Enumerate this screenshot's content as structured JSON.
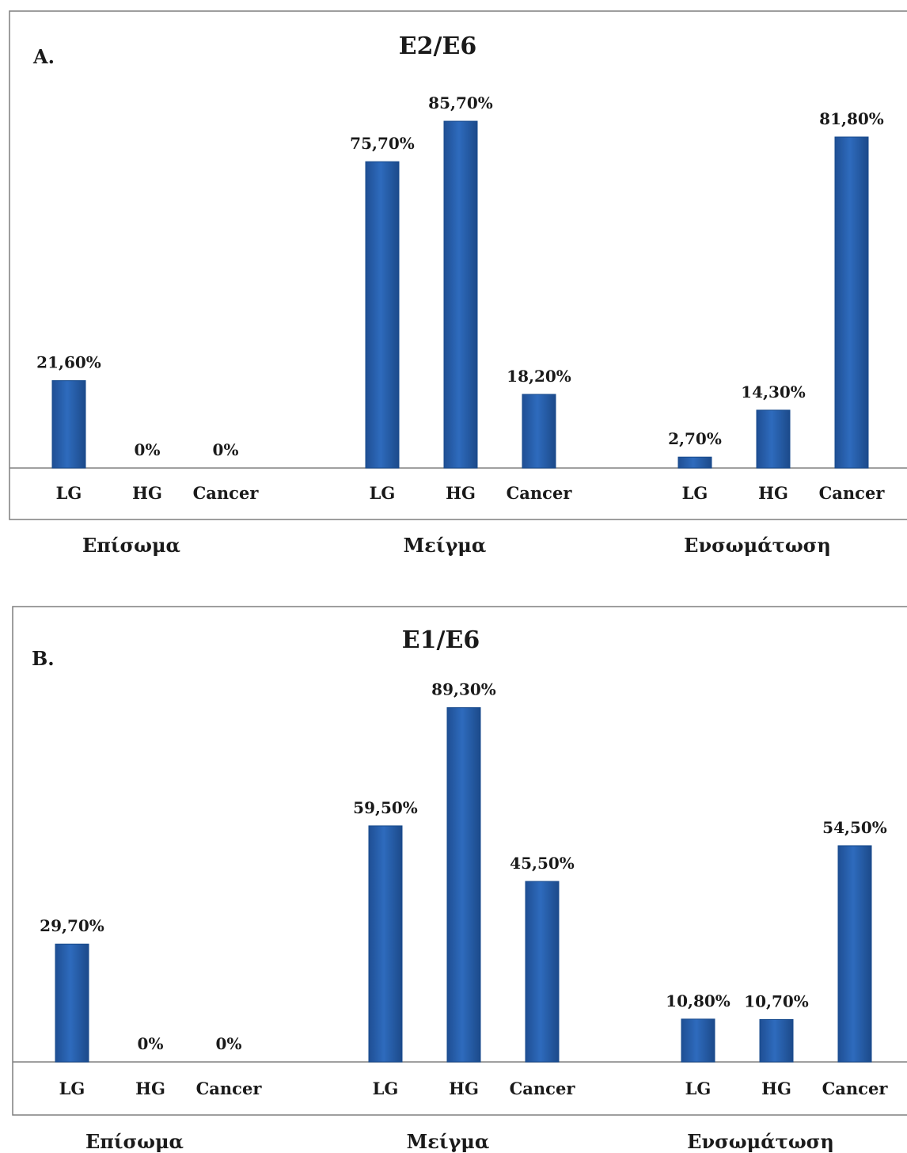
{
  "chart_data": [
    {
      "type": "bar",
      "panel_label": "A.",
      "title": "E2/E6",
      "groups": [
        {
          "name": "Επίσωμα",
          "categories": [
            "LG",
            "HG",
            "Cancer"
          ],
          "values": [
            21.6,
            0,
            0
          ],
          "labels": [
            "21,60%",
            "0%",
            "0%"
          ]
        },
        {
          "name": "Μείγμα",
          "categories": [
            "LG",
            "HG",
            "Cancer"
          ],
          "values": [
            75.7,
            85.7,
            18.2
          ],
          "labels": [
            "75,70%",
            "85,70%",
            "18,20%"
          ]
        },
        {
          "name": "Ενσωμάτωση",
          "categories": [
            "LG",
            "HG",
            "Cancer"
          ],
          "values": [
            2.7,
            14.3,
            81.8
          ],
          "labels": [
            "2,70%",
            "14,30%",
            "81,80%"
          ]
        }
      ],
      "ylim": [
        0,
        100
      ],
      "bar_color": "#2e6bbd",
      "grid": false,
      "legend": "none"
    },
    {
      "type": "bar",
      "panel_label": "B.",
      "title": "E1/E6",
      "groups": [
        {
          "name": "Επίσωμα",
          "categories": [
            "LG",
            "HG",
            "Cancer"
          ],
          "values": [
            29.7,
            0,
            0
          ],
          "labels": [
            "29,70%",
            "0%",
            "0%"
          ]
        },
        {
          "name": "Μείγμα",
          "categories": [
            "LG",
            "HG",
            "Cancer"
          ],
          "values": [
            59.5,
            89.3,
            45.5
          ],
          "labels": [
            "59,50%",
            "89,30%",
            "45,50%"
          ]
        },
        {
          "name": "Ενσωμάτωση",
          "categories": [
            "LG",
            "HG",
            "Cancer"
          ],
          "values": [
            10.8,
            10.7,
            54.5
          ],
          "labels": [
            "10,80%",
            "10,70%",
            "54,50%"
          ]
        }
      ],
      "ylim": [
        0,
        100
      ],
      "bar_color": "#2e6bbd",
      "grid": false,
      "legend": "none"
    }
  ]
}
